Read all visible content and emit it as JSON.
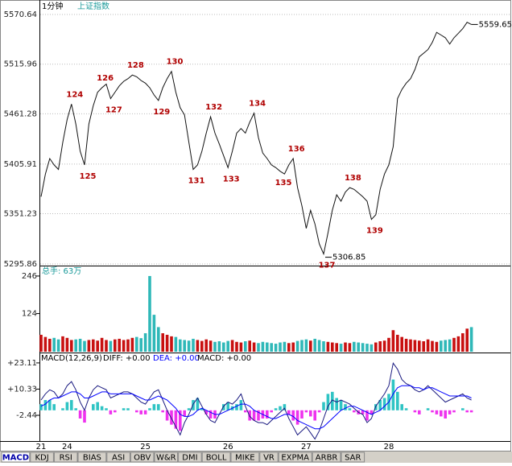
{
  "header": {
    "period": "1分钟",
    "symbol": "上证指数"
  },
  "chart_data": [
    {
      "type": "line",
      "color": "#111111",
      "grid": true,
      "ylim": [
        5295.86,
        5570.64
      ],
      "yticks": [
        5295.86,
        5351.23,
        5405.91,
        5461.28,
        5515.96,
        5570.64
      ],
      "categories": [
        "21",
        null,
        null,
        null,
        null,
        null,
        "24",
        null,
        null,
        null,
        null,
        null,
        null,
        null,
        null,
        null,
        null,
        null,
        null,
        null,
        null,
        null,
        null,
        null,
        "25",
        null,
        null,
        null,
        null,
        null,
        null,
        null,
        null,
        null,
        null,
        null,
        null,
        null,
        null,
        null,
        null,
        null,
        null,
        "26",
        null,
        null,
        null,
        null,
        null,
        null,
        null,
        null,
        null,
        null,
        null,
        null,
        null,
        null,
        null,
        null,
        null,
        "27",
        null,
        null,
        null,
        null,
        null,
        null,
        null,
        null,
        null,
        null,
        null,
        null,
        null,
        null,
        null,
        null,
        null,
        null,
        "28",
        null,
        null,
        null,
        null,
        null,
        null,
        null,
        null,
        null,
        null,
        null,
        null,
        null,
        null,
        null,
        null,
        null,
        null,
        null
      ],
      "values": [
        5370,
        5395,
        5412,
        5405,
        5400,
        5430,
        5455,
        5472,
        5450,
        5420,
        5405,
        5450,
        5470,
        5485,
        5490,
        5494,
        5478,
        5485,
        5492,
        5497,
        5500,
        5504,
        5502,
        5498,
        5495,
        5490,
        5482,
        5476,
        5490,
        5500,
        5508,
        5485,
        5468,
        5460,
        5430,
        5400,
        5405,
        5420,
        5440,
        5458,
        5440,
        5428,
        5415,
        5402,
        5420,
        5440,
        5445,
        5440,
        5452,
        5462,
        5435,
        5418,
        5412,
        5405,
        5402,
        5398,
        5395,
        5405,
        5412,
        5380,
        5360,
        5335,
        5355,
        5340,
        5318,
        5306.85,
        5330,
        5355,
        5372,
        5365,
        5375,
        5380,
        5378,
        5374,
        5370,
        5365,
        5345,
        5350,
        5378,
        5395,
        5405,
        5425,
        5478,
        5488,
        5495,
        5500,
        5510,
        5524,
        5528,
        5532,
        5540,
        5551,
        5548,
        5545,
        5538,
        5545,
        5550,
        5555,
        5562,
        5559.65
      ],
      "point_labels": [
        null,
        null,
        null,
        null,
        null,
        null,
        null,
        "124",
        null,
        null,
        "125",
        null,
        null,
        null,
        "126",
        null,
        "127",
        null,
        null,
        null,
        null,
        "128",
        null,
        null,
        null,
        null,
        null,
        "129",
        null,
        null,
        "130",
        null,
        null,
        null,
        null,
        "131",
        null,
        null,
        null,
        "132",
        null,
        null,
        null,
        "133",
        null,
        null,
        null,
        null,
        null,
        "134",
        null,
        null,
        null,
        null,
        null,
        "135",
        null,
        null,
        "136",
        null,
        null,
        null,
        null,
        null,
        null,
        "137",
        null,
        null,
        null,
        null,
        null,
        "138",
        null,
        null,
        null,
        null,
        "139",
        null,
        null,
        null,
        null,
        null,
        null,
        null,
        null,
        null,
        null,
        null,
        null,
        null,
        null,
        null,
        null,
        null,
        null,
        null,
        null,
        null,
        null,
        null
      ]
    },
    {
      "type": "bar",
      "title": "总手: 63万",
      "up_color": "#c81010",
      "down_color": "#2fb8b8",
      "ylim": [
        0,
        272
      ],
      "yticks": [
        124,
        246
      ],
      "values": [
        55,
        48,
        42,
        45,
        40,
        50,
        45,
        38,
        40,
        42,
        35,
        38,
        40,
        36,
        45,
        38,
        35,
        40,
        42,
        38,
        40,
        45,
        48,
        44,
        60,
        246,
        120,
        80,
        60,
        55,
        50,
        48,
        40,
        38,
        36,
        42,
        38,
        35,
        40,
        36,
        32,
        34,
        30,
        35,
        38,
        32,
        30,
        34,
        36,
        30,
        28,
        32,
        30,
        28,
        26,
        30,
        32,
        28,
        30,
        35,
        38,
        40,
        36,
        42,
        38,
        34,
        32,
        30,
        28,
        26,
        30,
        28,
        32,
        30,
        28,
        26,
        24,
        30,
        34,
        36,
        45,
        70,
        55,
        48,
        42,
        40,
        38,
        36,
        34,
        40,
        35,
        32,
        36,
        38,
        40,
        45,
        50,
        60,
        75,
        80
      ]
    },
    {
      "type": "macd",
      "title": "MACD(12,26,9)",
      "ylim": [
        -15,
        27
      ],
      "yticks": [
        -2.44,
        {
          "value": 10.33,
          "label": "+10.33"
        },
        {
          "value": 23.11,
          "label": "+23.11"
        }
      ],
      "series": [
        {
          "name": "DIFF: +0.00",
          "color": "#1a1a80",
          "values": [
            5,
            8,
            10,
            9,
            6,
            8,
            12,
            14,
            10,
            4,
            0,
            6,
            10,
            12,
            11,
            10,
            6,
            7,
            8,
            9,
            9,
            8,
            6,
            4,
            3,
            6,
            9,
            10,
            5,
            0,
            -4,
            -8,
            -12,
            -6,
            -2,
            3,
            6,
            2,
            -2,
            -5,
            -6,
            -2,
            2,
            4,
            3,
            5,
            8,
            2,
            -3,
            -5,
            -6,
            -6,
            -7,
            -5,
            -3,
            -1,
            1,
            -4,
            -8,
            -12,
            -10,
            -8,
            -11,
            -14,
            -10,
            -4,
            2,
            5,
            4,
            5,
            4,
            3,
            1,
            -1,
            -2,
            -6,
            -4,
            2,
            5,
            8,
            12,
            23,
            20,
            15,
            13,
            12,
            10,
            9,
            10,
            12,
            10,
            8,
            6,
            4,
            5,
            6,
            7,
            8,
            6,
            5
          ]
        },
        {
          "name": "DEA: +0.00",
          "color": "#0000ff",
          "values": [
            2,
            3,
            5,
            6,
            6,
            7,
            8,
            9,
            9,
            8,
            6,
            6,
            7,
            8,
            9,
            9,
            8,
            8,
            8,
            8,
            8,
            8,
            7,
            6,
            5,
            5,
            6,
            7,
            6,
            5,
            3,
            1,
            -2,
            -3,
            -3,
            -2,
            0,
            1,
            0,
            -1,
            -2,
            -2,
            -1,
            0,
            1,
            2,
            3,
            3,
            2,
            0,
            -1,
            -2,
            -3,
            -4,
            -4,
            -3,
            -2,
            -2,
            -3,
            -5,
            -6,
            -7,
            -8,
            -9,
            -9,
            -8,
            -6,
            -4,
            -2,
            0,
            1,
            2,
            2,
            1,
            0,
            -1,
            -2,
            -1,
            0,
            2,
            4,
            8,
            11,
            12,
            12,
            12,
            11,
            11,
            10,
            11,
            11,
            10,
            9,
            8,
            7,
            7,
            7,
            7,
            7,
            6
          ]
        }
      ],
      "histogram": {
        "name": "MACD: +0.00",
        "up_color": "#2fc4c4",
        "down_color": "#ee33ee",
        "values": [
          3,
          5,
          5,
          3,
          0,
          1,
          4,
          5,
          1,
          -4,
          -6,
          0,
          3,
          4,
          2,
          1,
          -2,
          -1,
          0,
          1,
          1,
          0,
          -1,
          -2,
          -2,
          1,
          3,
          3,
          -1,
          -5,
          -7,
          -9,
          -10,
          -3,
          1,
          5,
          6,
          1,
          -2,
          -4,
          -4,
          0,
          3,
          4,
          2,
          3,
          5,
          -1,
          -5,
          -5,
          -5,
          -4,
          -4,
          -1,
          1,
          2,
          3,
          -2,
          -5,
          -7,
          -4,
          -1,
          -3,
          -5,
          -1,
          4,
          8,
          9,
          6,
          5,
          3,
          1,
          -1,
          -2,
          -2,
          -5,
          -2,
          3,
          5,
          6,
          8,
          15,
          9,
          3,
          1,
          0,
          -1,
          -2,
          0,
          1,
          -1,
          -2,
          -3,
          -4,
          -2,
          -1,
          0,
          1,
          -1,
          -1
        ]
      }
    }
  ],
  "tabs": [
    "MACD",
    "KDJ",
    "RSI",
    "BIAS",
    "ASI",
    "OBV",
    "W&R",
    "DMI",
    "BOLL",
    "MIKE",
    "VR",
    "EXPMA",
    "ARBR",
    "SAR"
  ]
}
